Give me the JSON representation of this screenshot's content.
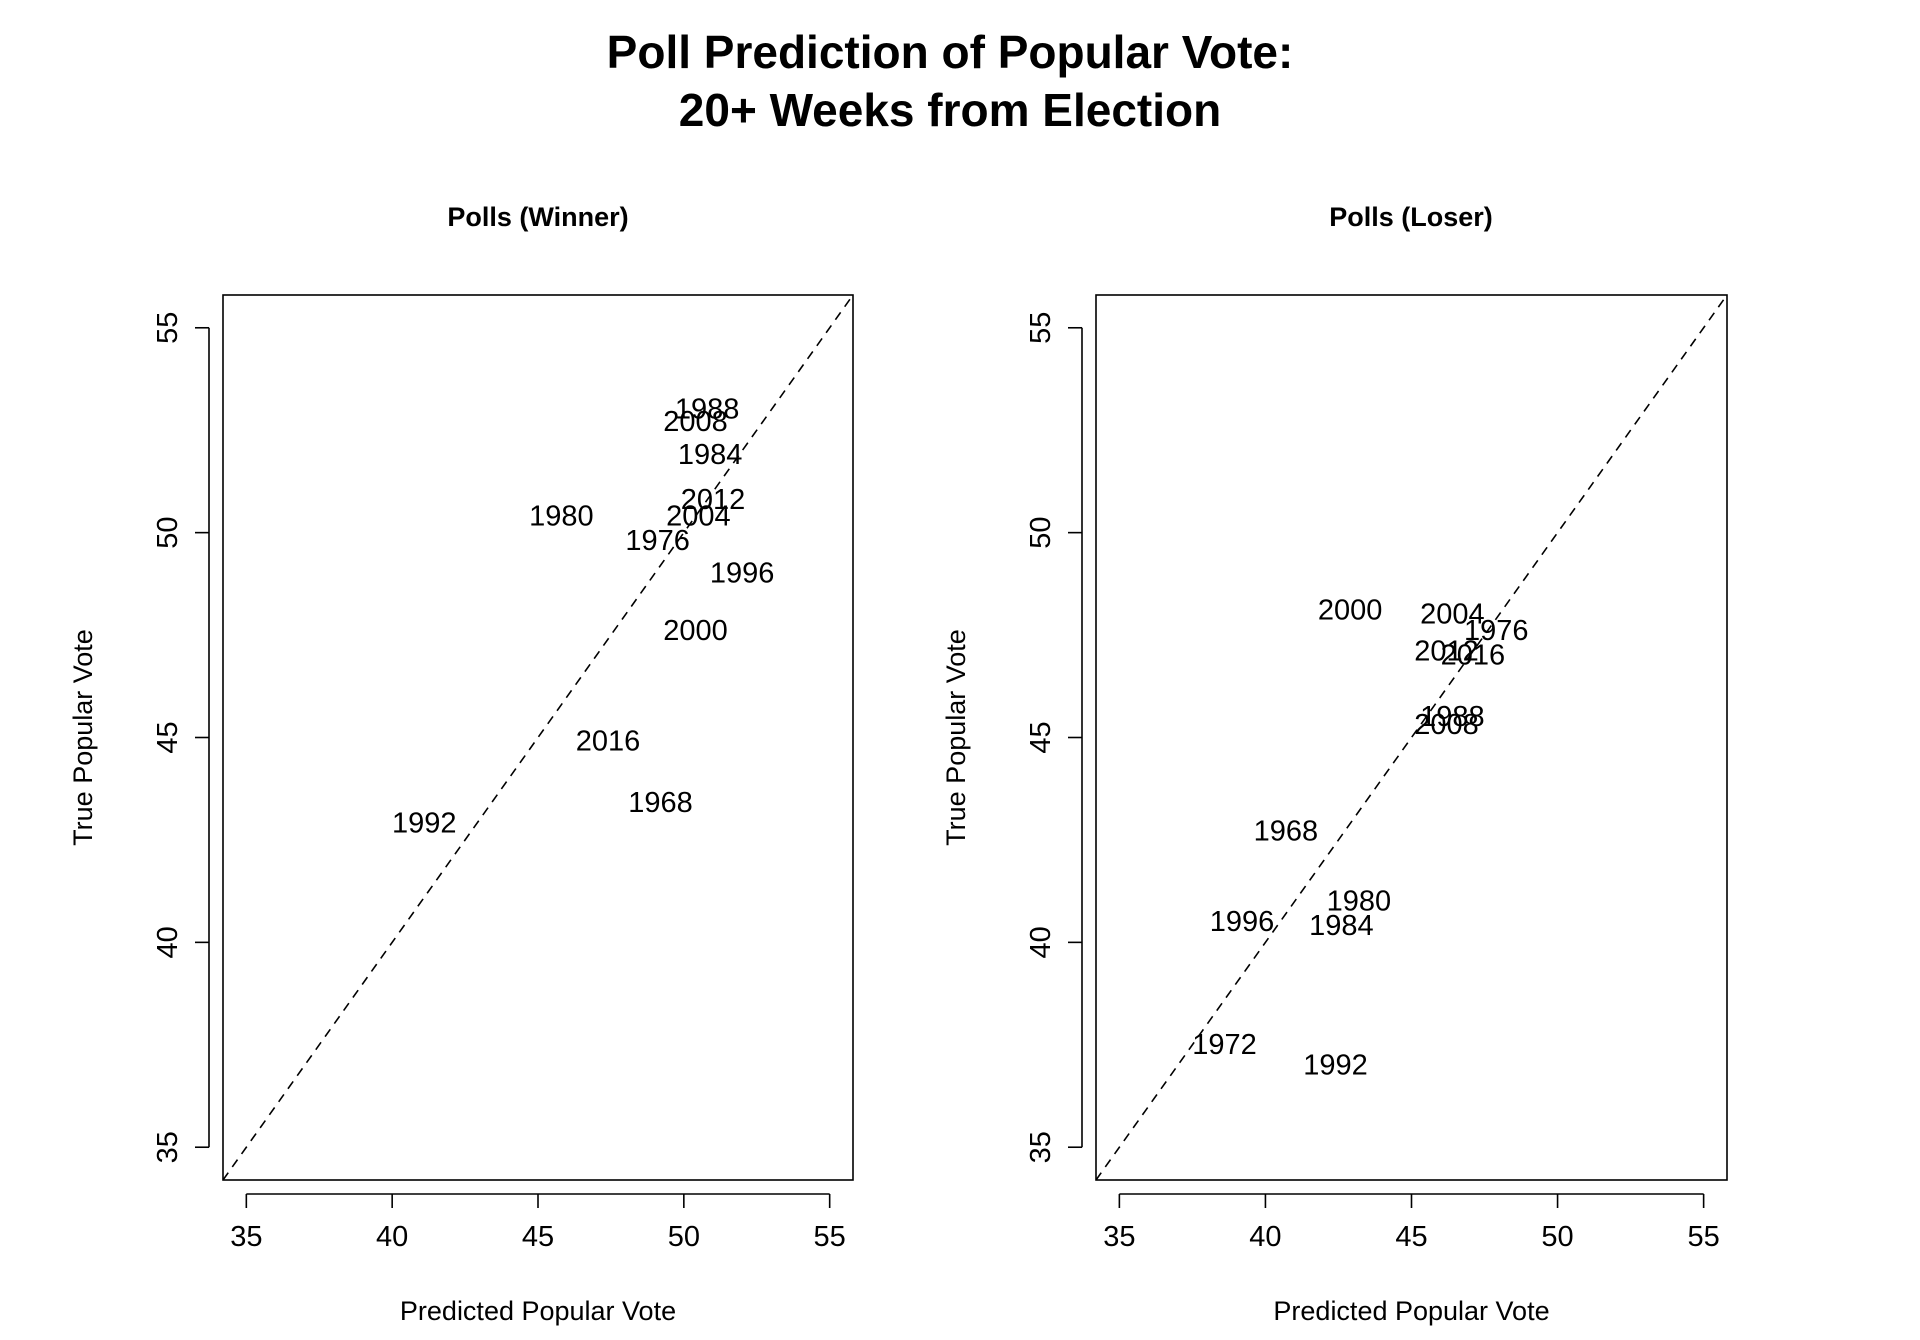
{
  "figure": {
    "title_line1": "Poll Prediction of Popular Vote:",
    "title_line2": "20+ Weeks from Election"
  },
  "chart_data": [
    {
      "type": "scatter",
      "title": "Polls (Winner)",
      "xlabel": "Predicted Popular Vote",
      "ylabel": "True Popular Vote",
      "xlim": [
        34.2,
        55.8
      ],
      "ylim": [
        34.2,
        55.8
      ],
      "xticks": [
        35,
        40,
        45,
        50,
        55
      ],
      "yticks": [
        35,
        40,
        45,
        50,
        55
      ],
      "reference_line": "y = x (dashed)",
      "points": [
        {
          "label": "1968",
          "x": 49.2,
          "y": 43.4
        },
        {
          "label": "1976",
          "x": 49.1,
          "y": 49.8
        },
        {
          "label": "1980",
          "x": 45.8,
          "y": 50.4
        },
        {
          "label": "1984",
          "x": 50.9,
          "y": 51.9
        },
        {
          "label": "1988",
          "x": 50.8,
          "y": 53.0
        },
        {
          "label": "1992",
          "x": 41.1,
          "y": 42.9
        },
        {
          "label": "1996",
          "x": 52.0,
          "y": 49.0
        },
        {
          "label": "2000",
          "x": 50.4,
          "y": 47.6
        },
        {
          "label": "2004",
          "x": 50.5,
          "y": 50.4
        },
        {
          "label": "2008",
          "x": 50.4,
          "y": 52.7
        },
        {
          "label": "2012",
          "x": 51.0,
          "y": 50.8
        },
        {
          "label": "2016",
          "x": 47.4,
          "y": 44.9
        }
      ]
    },
    {
      "type": "scatter",
      "title": "Polls (Loser)",
      "xlabel": "Predicted Popular Vote",
      "ylabel": "True Popular Vote",
      "xlim": [
        34.2,
        55.8
      ],
      "ylim": [
        34.2,
        55.8
      ],
      "xticks": [
        35,
        40,
        45,
        50,
        55
      ],
      "yticks": [
        35,
        40,
        45,
        50,
        55
      ],
      "reference_line": "y = x (dashed)",
      "points": [
        {
          "label": "1968",
          "x": 40.7,
          "y": 42.7
        },
        {
          "label": "1972",
          "x": 38.6,
          "y": 37.5
        },
        {
          "label": "1976",
          "x": 47.9,
          "y": 47.6
        },
        {
          "label": "1980",
          "x": 43.2,
          "y": 41.0
        },
        {
          "label": "1984",
          "x": 42.6,
          "y": 40.4
        },
        {
          "label": "1988",
          "x": 46.4,
          "y": 45.5
        },
        {
          "label": "1992",
          "x": 42.4,
          "y": 37.0
        },
        {
          "label": "1996",
          "x": 39.2,
          "y": 40.5
        },
        {
          "label": "2000",
          "x": 42.9,
          "y": 48.1
        },
        {
          "label": "2004",
          "x": 46.4,
          "y": 48.0
        },
        {
          "label": "2008",
          "x": 46.2,
          "y": 45.3
        },
        {
          "label": "2012",
          "x": 46.2,
          "y": 47.1
        },
        {
          "label": "2016",
          "x": 47.1,
          "y": 47.0
        }
      ]
    }
  ]
}
